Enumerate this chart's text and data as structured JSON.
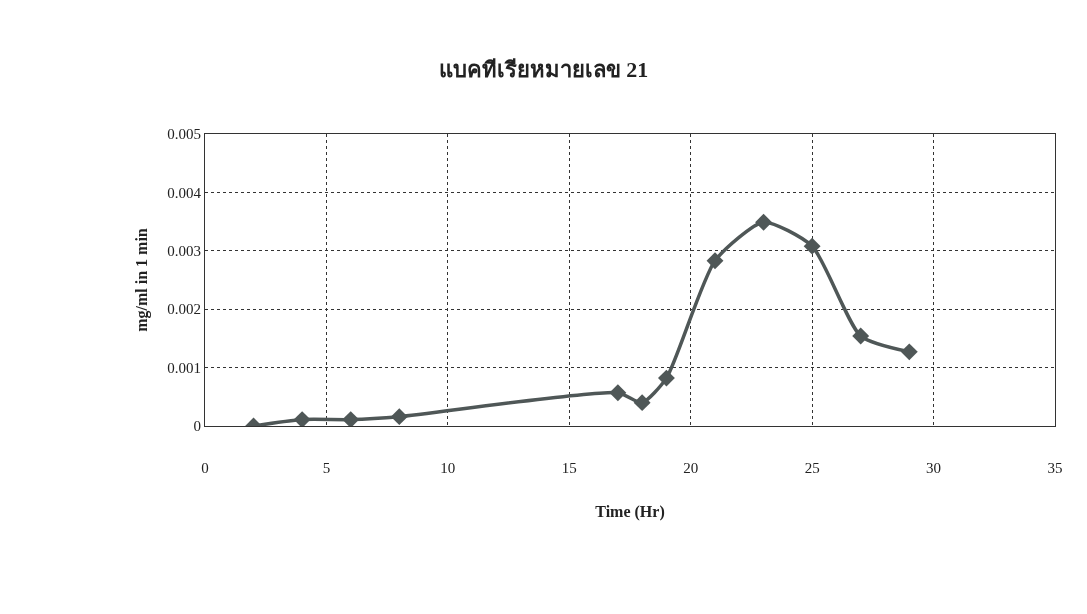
{
  "chart_data": {
    "type": "line",
    "title": "แบคทีเรียหมายเลข 21",
    "xlabel": "Time (Hr)",
    "ylabel": "mg/ml in 1 min",
    "x": [
      2,
      4,
      6,
      8,
      17,
      18,
      19,
      21,
      23,
      25,
      27,
      29
    ],
    "series": [
      {
        "color": "#4f5757",
        "values": [
          0,
          0.00011,
          0.00011,
          0.00016,
          0.00057,
          0.0004,
          0.00082,
          0.00283,
          0.00349,
          0.00308,
          0.00154,
          0.00127
        ]
      }
    ],
    "xlim": [
      0,
      35
    ],
    "xticks": [
      0,
      5,
      10,
      15,
      20,
      25,
      30,
      35
    ],
    "ylim": [
      0,
      0.005
    ],
    "yticks": [
      0,
      0.001,
      0.002,
      0.003,
      0.004,
      0.005
    ],
    "grid": true,
    "marker": "diamond",
    "line_style": "solid"
  }
}
